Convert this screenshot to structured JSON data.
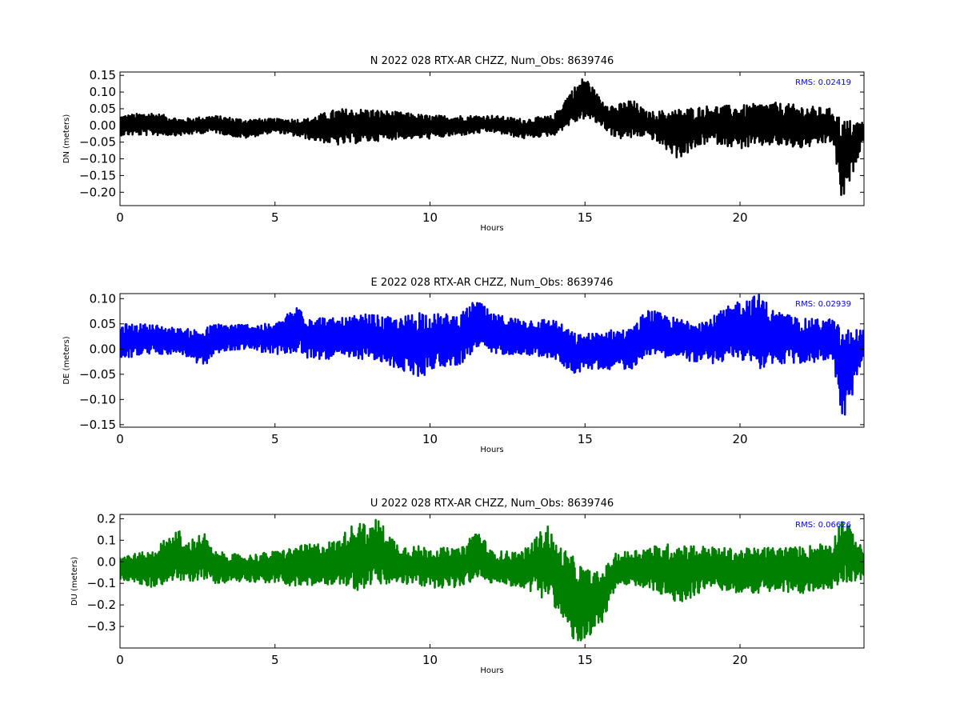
{
  "chart_data": [
    {
      "type": "line",
      "title": "N 2022 028 RTX-AR  CHZZ, Num_Obs: 8639746",
      "xlabel": "Hours",
      "ylabel": "DN (meters)",
      "xlim": [
        0,
        24
      ],
      "ylim": [
        -0.24,
        0.16
      ],
      "xticks": [
        0,
        5,
        10,
        15,
        20
      ],
      "yticks": [
        0.15,
        0.1,
        0.05,
        0.0,
        -0.05,
        -0.1,
        -0.15,
        -0.2
      ],
      "yticklabels": [
        "0.15",
        "0.10",
        "0.05",
        "0.00",
        "−0.05",
        "−0.10",
        "−0.15",
        "−0.20"
      ],
      "annotation": "RMS:  0.02419",
      "annotation_color": "#0000ff",
      "line_color": "#000000",
      "series": [
        {
          "x": [
            0,
            1,
            2,
            3,
            4,
            5,
            6,
            7,
            8,
            9,
            10,
            11,
            12,
            13,
            14,
            14.5,
            15,
            15.5,
            16,
            16.5,
            17,
            18,
            19,
            20,
            21,
            22,
            23,
            23.3,
            24
          ],
          "y_low": [
            -0.03,
            -0.03,
            -0.03,
            -0.02,
            -0.04,
            -0.02,
            -0.04,
            -0.06,
            -0.05,
            -0.04,
            -0.04,
            -0.03,
            -0.02,
            -0.04,
            -0.03,
            0.0,
            0.02,
            0.0,
            -0.04,
            -0.04,
            -0.03,
            -0.1,
            -0.05,
            -0.07,
            -0.06,
            -0.07,
            -0.05,
            -0.24,
            -0.04
          ],
          "y_high": [
            0.03,
            0.04,
            0.02,
            0.03,
            0.02,
            0.02,
            0.02,
            0.05,
            0.05,
            0.04,
            0.03,
            0.03,
            0.03,
            0.02,
            0.03,
            0.1,
            0.15,
            0.08,
            0.06,
            0.08,
            0.04,
            0.05,
            0.06,
            0.06,
            0.07,
            0.06,
            0.05,
            0.02,
            0.01
          ]
        }
      ]
    },
    {
      "type": "line",
      "title": "E 2022 028 RTX-AR  CHZZ, Num_Obs: 8639746",
      "xlabel": "Hours",
      "ylabel": "DE (meters)",
      "xlim": [
        0,
        24
      ],
      "ylim": [
        -0.155,
        0.11
      ],
      "xticks": [
        0,
        5,
        10,
        15,
        20
      ],
      "yticks": [
        0.1,
        0.05,
        0.0,
        -0.05,
        -0.1,
        -0.15
      ],
      "yticklabels": [
        "0.10",
        "0.05",
        "0.00",
        "−0.05",
        "−0.10",
        "−0.15"
      ],
      "annotation": "RMS:  0.02939",
      "annotation_color": "#0000ff",
      "line_color": "#0000ff",
      "series": [
        {
          "x": [
            0,
            1,
            2,
            2.7,
            3,
            4,
            5,
            5.8,
            6,
            7,
            8,
            9,
            9.7,
            10,
            11,
            11.5,
            12,
            13,
            14,
            14.7,
            15,
            16,
            16.5,
            17,
            18,
            19,
            20,
            20.7,
            21,
            22,
            23,
            23.3,
            24
          ],
          "y_low": [
            -0.02,
            -0.01,
            -0.01,
            -0.04,
            -0.01,
            0.0,
            -0.01,
            -0.01,
            -0.02,
            -0.02,
            -0.02,
            -0.04,
            -0.06,
            -0.04,
            -0.03,
            0.0,
            -0.01,
            -0.01,
            -0.02,
            -0.05,
            -0.04,
            -0.04,
            -0.04,
            -0.01,
            -0.02,
            -0.03,
            -0.02,
            -0.04,
            -0.03,
            -0.03,
            -0.02,
            -0.155,
            -0.02
          ],
          "y_high": [
            0.05,
            0.05,
            0.04,
            0.04,
            0.05,
            0.05,
            0.05,
            0.09,
            0.07,
            0.06,
            0.07,
            0.06,
            0.08,
            0.07,
            0.07,
            0.1,
            0.07,
            0.06,
            0.06,
            0.03,
            0.03,
            0.04,
            0.04,
            0.08,
            0.06,
            0.06,
            0.1,
            0.11,
            0.08,
            0.06,
            0.06,
            0.04,
            0.04
          ]
        }
      ]
    },
    {
      "type": "line",
      "title": "U 2022 028 RTX-AR  CHZZ, Num_Obs: 8639746",
      "xlabel": "Hours",
      "ylabel": "DU (meters)",
      "xlim": [
        0,
        24
      ],
      "ylim": [
        -0.4,
        0.22
      ],
      "xticks": [
        0,
        5,
        10,
        15,
        20
      ],
      "yticks": [
        0.2,
        0.1,
        0.0,
        -0.1,
        -0.2,
        -0.3
      ],
      "yticklabels": [
        "0.2",
        "0.1",
        "0.0",
        "−0.1",
        "−0.2",
        "−0.3"
      ],
      "annotation": "RMS:  0.06626",
      "annotation_color": "#0000ff",
      "line_color": "#008000",
      "series": [
        {
          "x": [
            0,
            1,
            1.9,
            2,
            2.7,
            3,
            4,
            5,
            6,
            7,
            7.8,
            8,
            8.2,
            9,
            10,
            11,
            11.5,
            12,
            13,
            13.8,
            14,
            14.5,
            15,
            15.5,
            16,
            17,
            18,
            19,
            20,
            21,
            22,
            23,
            23.3,
            24
          ],
          "y_low": [
            -0.08,
            -0.12,
            -0.08,
            -0.1,
            -0.08,
            -0.1,
            -0.09,
            -0.1,
            -0.12,
            -0.1,
            -0.14,
            -0.1,
            -0.12,
            -0.1,
            -0.12,
            -0.12,
            -0.08,
            -0.1,
            -0.12,
            -0.18,
            -0.2,
            -0.35,
            -0.4,
            -0.3,
            -0.12,
            -0.12,
            -0.2,
            -0.12,
            -0.15,
            -0.14,
            -0.15,
            -0.12,
            -0.1,
            -0.08
          ],
          "y_high": [
            0.03,
            0.05,
            0.16,
            0.08,
            0.14,
            0.05,
            0.03,
            0.05,
            0.08,
            0.1,
            0.22,
            0.12,
            0.22,
            0.08,
            0.07,
            0.06,
            0.16,
            0.05,
            0.05,
            0.18,
            0.1,
            0.04,
            -0.03,
            -0.05,
            0.04,
            0.07,
            0.09,
            0.07,
            0.06,
            0.07,
            0.07,
            0.1,
            0.22,
            0.05
          ]
        }
      ]
    }
  ]
}
